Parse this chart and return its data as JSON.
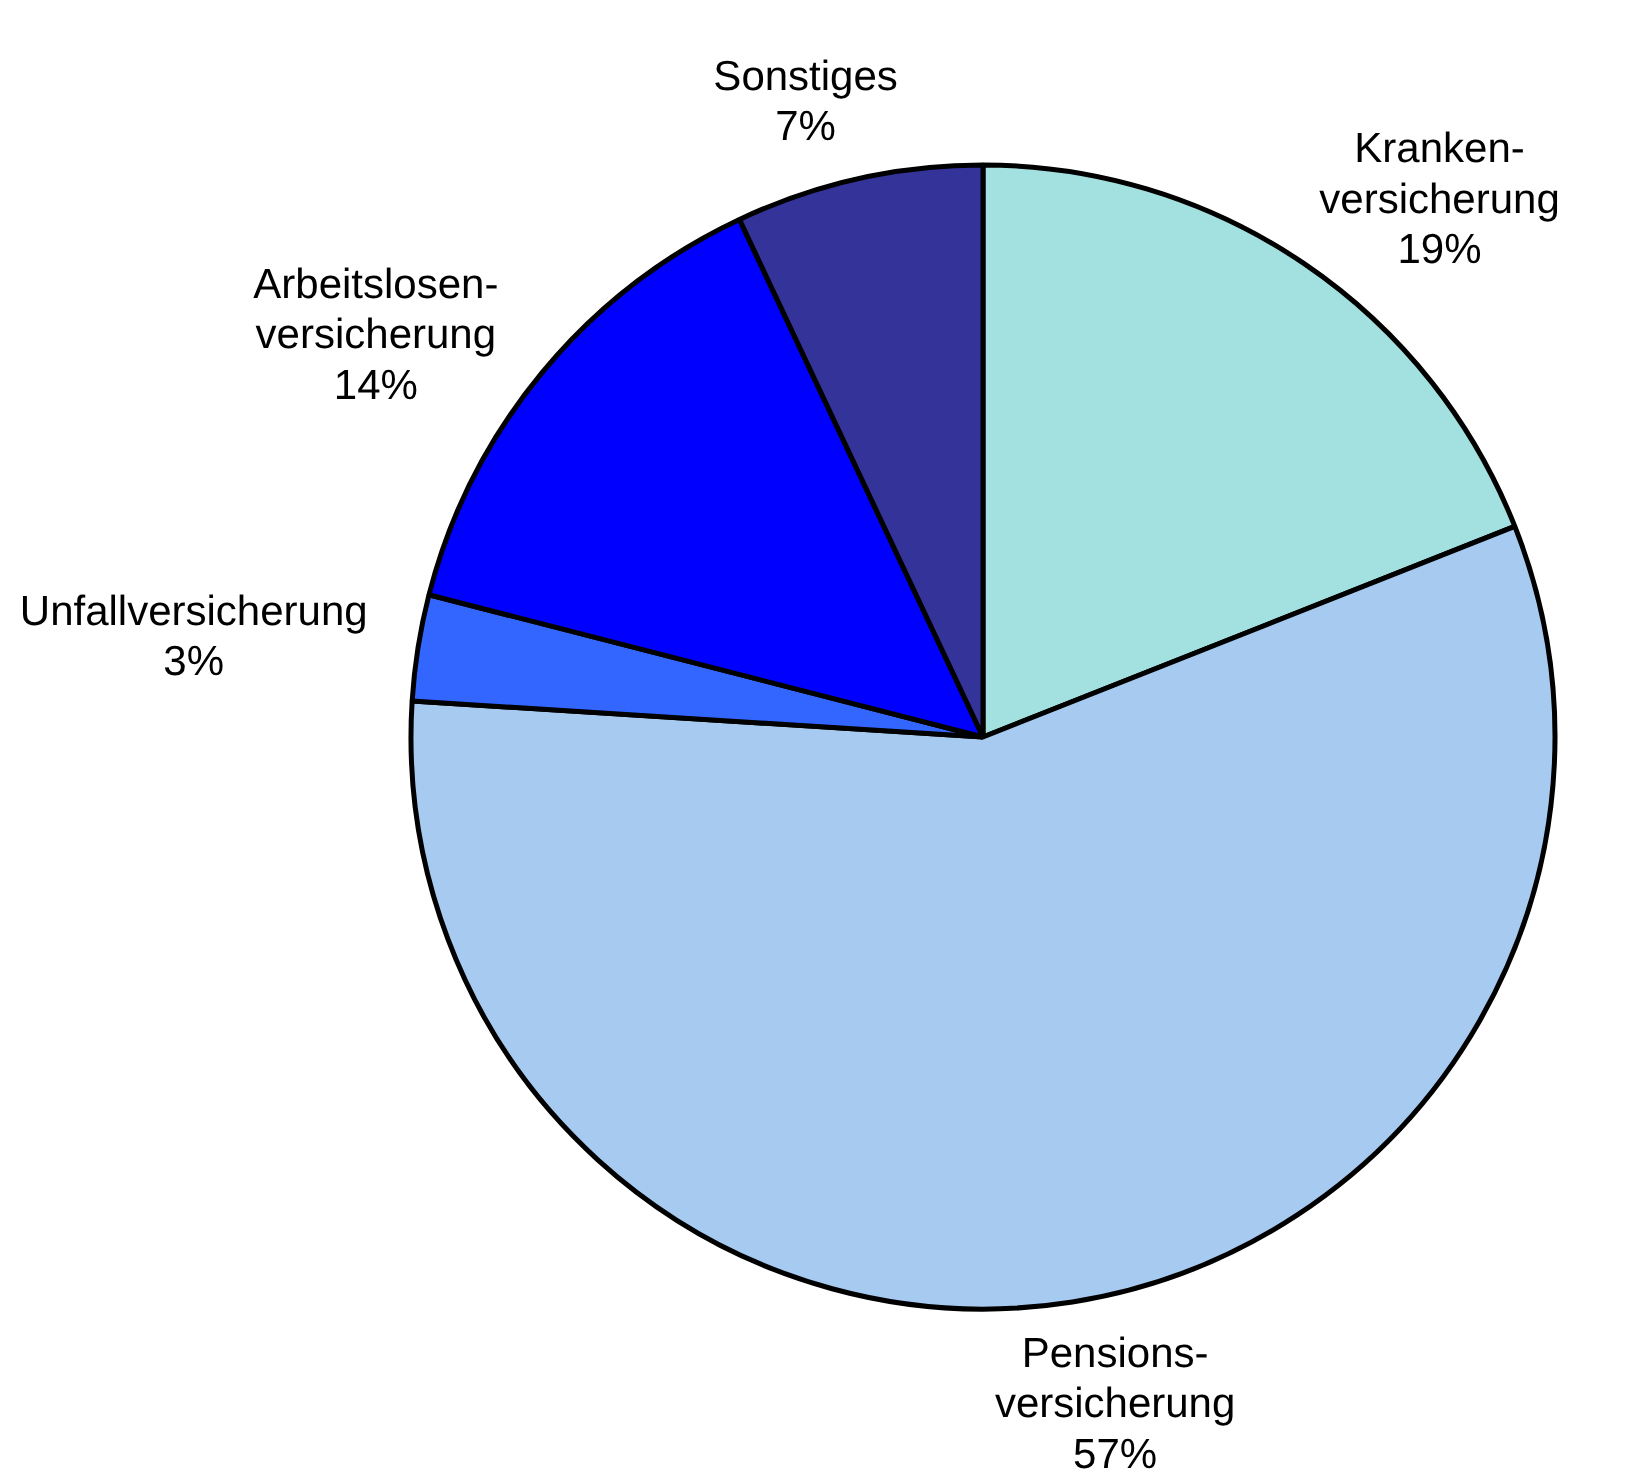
{
  "chart_data": {
    "type": "pie",
    "categories": [
      "Kranken-\nversicherung",
      "Pensions-\nversicherung",
      "Unfallversicherung",
      "Arbeitslosen-\nversicherung",
      "Sonstiges"
    ],
    "values": [
      19,
      57,
      3,
      14,
      7
    ],
    "colors": [
      "#a3e0e0",
      "#a6caf0",
      "#3366ff",
      "#0000ff",
      "#333399"
    ],
    "value_labels": [
      "19%",
      "57%",
      "3%",
      "14%",
      "7%"
    ]
  }
}
